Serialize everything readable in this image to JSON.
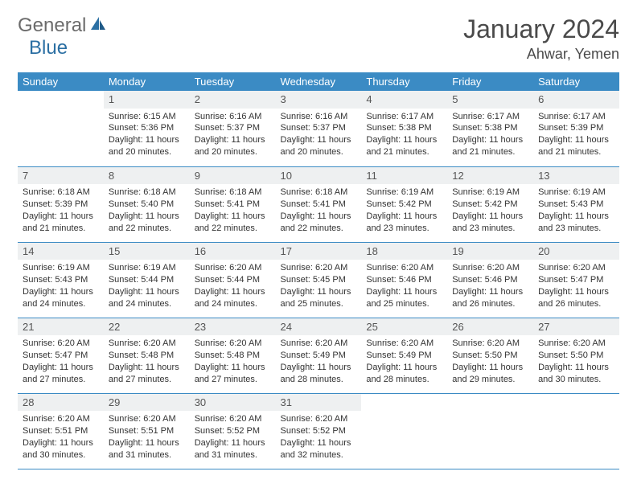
{
  "brand": {
    "part1": "General",
    "part2": "Blue"
  },
  "title": "January 2024",
  "location": "Ahwar, Yemen",
  "colors": {
    "header_bg": "#3b8bc4",
    "header_text": "#ffffff",
    "daynum_bg": "#eef0f1",
    "border": "#3b8bc4",
    "logo_gray": "#6b6b6b",
    "logo_blue": "#2b6fa3"
  },
  "weekdays": [
    "Sunday",
    "Monday",
    "Tuesday",
    "Wednesday",
    "Thursday",
    "Friday",
    "Saturday"
  ],
  "days": [
    {
      "n": "1",
      "sr": "Sunrise: 6:15 AM",
      "ss": "Sunset: 5:36 PM",
      "d1": "Daylight: 11 hours",
      "d2": "and 20 minutes."
    },
    {
      "n": "2",
      "sr": "Sunrise: 6:16 AM",
      "ss": "Sunset: 5:37 PM",
      "d1": "Daylight: 11 hours",
      "d2": "and 20 minutes."
    },
    {
      "n": "3",
      "sr": "Sunrise: 6:16 AM",
      "ss": "Sunset: 5:37 PM",
      "d1": "Daylight: 11 hours",
      "d2": "and 20 minutes."
    },
    {
      "n": "4",
      "sr": "Sunrise: 6:17 AM",
      "ss": "Sunset: 5:38 PM",
      "d1": "Daylight: 11 hours",
      "d2": "and 21 minutes."
    },
    {
      "n": "5",
      "sr": "Sunrise: 6:17 AM",
      "ss": "Sunset: 5:38 PM",
      "d1": "Daylight: 11 hours",
      "d2": "and 21 minutes."
    },
    {
      "n": "6",
      "sr": "Sunrise: 6:17 AM",
      "ss": "Sunset: 5:39 PM",
      "d1": "Daylight: 11 hours",
      "d2": "and 21 minutes."
    },
    {
      "n": "7",
      "sr": "Sunrise: 6:18 AM",
      "ss": "Sunset: 5:39 PM",
      "d1": "Daylight: 11 hours",
      "d2": "and 21 minutes."
    },
    {
      "n": "8",
      "sr": "Sunrise: 6:18 AM",
      "ss": "Sunset: 5:40 PM",
      "d1": "Daylight: 11 hours",
      "d2": "and 22 minutes."
    },
    {
      "n": "9",
      "sr": "Sunrise: 6:18 AM",
      "ss": "Sunset: 5:41 PM",
      "d1": "Daylight: 11 hours",
      "d2": "and 22 minutes."
    },
    {
      "n": "10",
      "sr": "Sunrise: 6:18 AM",
      "ss": "Sunset: 5:41 PM",
      "d1": "Daylight: 11 hours",
      "d2": "and 22 minutes."
    },
    {
      "n": "11",
      "sr": "Sunrise: 6:19 AM",
      "ss": "Sunset: 5:42 PM",
      "d1": "Daylight: 11 hours",
      "d2": "and 23 minutes."
    },
    {
      "n": "12",
      "sr": "Sunrise: 6:19 AM",
      "ss": "Sunset: 5:42 PM",
      "d1": "Daylight: 11 hours",
      "d2": "and 23 minutes."
    },
    {
      "n": "13",
      "sr": "Sunrise: 6:19 AM",
      "ss": "Sunset: 5:43 PM",
      "d1": "Daylight: 11 hours",
      "d2": "and 23 minutes."
    },
    {
      "n": "14",
      "sr": "Sunrise: 6:19 AM",
      "ss": "Sunset: 5:43 PM",
      "d1": "Daylight: 11 hours",
      "d2": "and 24 minutes."
    },
    {
      "n": "15",
      "sr": "Sunrise: 6:19 AM",
      "ss": "Sunset: 5:44 PM",
      "d1": "Daylight: 11 hours",
      "d2": "and 24 minutes."
    },
    {
      "n": "16",
      "sr": "Sunrise: 6:20 AM",
      "ss": "Sunset: 5:44 PM",
      "d1": "Daylight: 11 hours",
      "d2": "and 24 minutes."
    },
    {
      "n": "17",
      "sr": "Sunrise: 6:20 AM",
      "ss": "Sunset: 5:45 PM",
      "d1": "Daylight: 11 hours",
      "d2": "and 25 minutes."
    },
    {
      "n": "18",
      "sr": "Sunrise: 6:20 AM",
      "ss": "Sunset: 5:46 PM",
      "d1": "Daylight: 11 hours",
      "d2": "and 25 minutes."
    },
    {
      "n": "19",
      "sr": "Sunrise: 6:20 AM",
      "ss": "Sunset: 5:46 PM",
      "d1": "Daylight: 11 hours",
      "d2": "and 26 minutes."
    },
    {
      "n": "20",
      "sr": "Sunrise: 6:20 AM",
      "ss": "Sunset: 5:47 PM",
      "d1": "Daylight: 11 hours",
      "d2": "and 26 minutes."
    },
    {
      "n": "21",
      "sr": "Sunrise: 6:20 AM",
      "ss": "Sunset: 5:47 PM",
      "d1": "Daylight: 11 hours",
      "d2": "and 27 minutes."
    },
    {
      "n": "22",
      "sr": "Sunrise: 6:20 AM",
      "ss": "Sunset: 5:48 PM",
      "d1": "Daylight: 11 hours",
      "d2": "and 27 minutes."
    },
    {
      "n": "23",
      "sr": "Sunrise: 6:20 AM",
      "ss": "Sunset: 5:48 PM",
      "d1": "Daylight: 11 hours",
      "d2": "and 27 minutes."
    },
    {
      "n": "24",
      "sr": "Sunrise: 6:20 AM",
      "ss": "Sunset: 5:49 PM",
      "d1": "Daylight: 11 hours",
      "d2": "and 28 minutes."
    },
    {
      "n": "25",
      "sr": "Sunrise: 6:20 AM",
      "ss": "Sunset: 5:49 PM",
      "d1": "Daylight: 11 hours",
      "d2": "and 28 minutes."
    },
    {
      "n": "26",
      "sr": "Sunrise: 6:20 AM",
      "ss": "Sunset: 5:50 PM",
      "d1": "Daylight: 11 hours",
      "d2": "and 29 minutes."
    },
    {
      "n": "27",
      "sr": "Sunrise: 6:20 AM",
      "ss": "Sunset: 5:50 PM",
      "d1": "Daylight: 11 hours",
      "d2": "and 30 minutes."
    },
    {
      "n": "28",
      "sr": "Sunrise: 6:20 AM",
      "ss": "Sunset: 5:51 PM",
      "d1": "Daylight: 11 hours",
      "d2": "and 30 minutes."
    },
    {
      "n": "29",
      "sr": "Sunrise: 6:20 AM",
      "ss": "Sunset: 5:51 PM",
      "d1": "Daylight: 11 hours",
      "d2": "and 31 minutes."
    },
    {
      "n": "30",
      "sr": "Sunrise: 6:20 AM",
      "ss": "Sunset: 5:52 PM",
      "d1": "Daylight: 11 hours",
      "d2": "and 31 minutes."
    },
    {
      "n": "31",
      "sr": "Sunrise: 6:20 AM",
      "ss": "Sunset: 5:52 PM",
      "d1": "Daylight: 11 hours",
      "d2": "and 32 minutes."
    }
  ],
  "layout": {
    "first_weekday_offset": 1,
    "total_cells": 35
  }
}
